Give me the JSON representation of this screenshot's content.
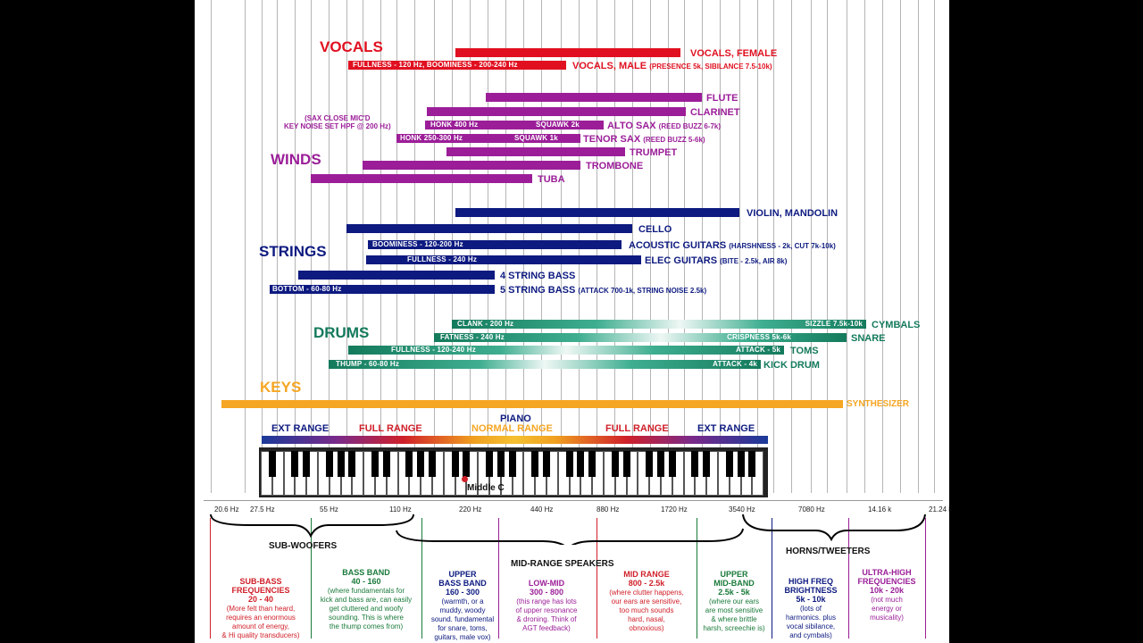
{
  "sections": {
    "vocals": "VOCALS",
    "winds": "WINDS",
    "strings": "STRINGS",
    "drums": "DRUMS",
    "keys": "KEYS"
  },
  "colors": {
    "vocals": "#e01020",
    "winds": "#9b1e98",
    "strings": "#0d1a80",
    "drums": "#147a5c",
    "keys": "#f5a623"
  },
  "vocals": {
    "female_label": "VOCALS, FEMALE",
    "male_label": "VOCALS, MALE",
    "male_note": "(PRESENCE 5k, SIBILANCE 7.5-10k)",
    "male_bar_text": "FULLNESS - 120 Hz, BOOMINESS - 200-240 Hz"
  },
  "winds": {
    "flute": "FLUTE",
    "clarinet": "CLARINET",
    "alto_sax": "ALTO SAX",
    "alto_note": "(REED BUZZ 6-7k)",
    "alto_honk": "HONK 400 Hz",
    "alto_squawk": "SQUAWK 2k",
    "tenor_sax": "TENOR SAX",
    "tenor_note": "(REED BUZZ 5-6k)",
    "tenor_honk": "HONK 250-300 Hz",
    "tenor_squawk": "SQUAWK 1k",
    "trumpet": "TRUMPET",
    "trombone": "TROMBONE",
    "tuba": "TUBA",
    "sax_note_1": "(SAX CLOSE MIC'D",
    "sax_note_2": "KEY NOISE SET HPF @ 200 Hz)"
  },
  "strings": {
    "violin": "VIOLIN, MANDOLIN",
    "cello": "CELLO",
    "acoustic": "ACOUSTIC GUITARS",
    "acoustic_note": "(HARSHNESS - 2k, CUT 7k-10k)",
    "acoustic_bar": "BOOMINESS - 120-200 Hz",
    "elec": "ELEC GUITARS",
    "elec_note": "(BITE - 2.5k, AIR 8k)",
    "elec_bar": "FULLNESS - 240 Hz",
    "bass4": "4 STRING BASS",
    "bass5": "5 STRING BASS",
    "bass5_note": "(ATTACK 700-1k, STRING NOISE 2.5k)",
    "bass5_bar": "BOTTOM - 60-80 Hz"
  },
  "drums": {
    "cymbals": "CYMBALS",
    "cymbals_bar_left": "CLANK - 200 Hz",
    "cymbals_bar_right": "SIZZLE 7.5k-10k",
    "snare": "SNARE",
    "snare_bar_left": "FATNESS - 240 Hz",
    "snare_bar_right": "CRISPNESS 5k-6k",
    "toms": "TOMS",
    "toms_bar_left": "FULLNESS - 120-240 Hz",
    "toms_bar_right": "ATTACK - 5k",
    "kick": "KICK DRUM",
    "kick_bar_left": "THUMP - 60-80 Hz",
    "kick_bar_right": "ATTACK - 4k"
  },
  "keys": {
    "synth": "SYNTHESIZER",
    "piano": "PIANO",
    "ext_left": "EXT RANGE",
    "full_left": "FULL RANGE",
    "normal": "NORMAL RANGE",
    "full_right": "FULL RANGE",
    "ext_right": "EXT RANGE",
    "middle_c": "Middle C"
  },
  "freq_labels": [
    "20.6 Hz",
    "27.5 Hz",
    "55 Hz",
    "110 Hz",
    "220 Hz",
    "440 Hz",
    "880 Hz",
    "1720 Hz",
    "3540 Hz",
    "7080 Hz",
    "14.16 k",
    "21.24 k"
  ],
  "speakers": {
    "subwoofers": "SUB-WOOFERS",
    "midrange": "MID-RANGE SPEAKERS",
    "horns": "HORNS/TWEETERS"
  },
  "bands": [
    {
      "title": "SUB-BASS\nFREQUENCIES\n20 - 40",
      "desc": "(More felt than heard,\nrequires an enormous\namount of energy,\n& Hi quality transducers)",
      "color": "#d0202a"
    },
    {
      "title": "BASS BAND\n40 - 160",
      "desc": "(where fundamentals for\nkick and bass are, can easily\nget cluttered and woofy\nsounding. This is where\nthe thump comes from)",
      "color": "#1a7a3a"
    },
    {
      "title": "UPPER\nBASS BAND\n160 - 300",
      "desc": "(warmth, or a\nmuddy, woody\nsound. fundamental\nfor snare, toms,\nguitars, male vox)",
      "color": "#0d1a80"
    },
    {
      "title": "LOW-MID\n300 - 800",
      "desc": "(this range has lots\nof upper resonance\n& droning. Think of\nAGT feedback)",
      "color": "#9b1e98"
    },
    {
      "title": "MID RANGE\n800 - 2.5k",
      "desc": "(where clutter happens,\nour ears are sensitive,\ntoo much sounds\nhard, nasal,\nobnoxious)",
      "color": "#d0202a"
    },
    {
      "title": "UPPER\nMID-BAND\n2.5k - 5k",
      "desc": "(where our ears\nare most sensitive\n& where brittle\nharsh, screechie is)",
      "color": "#1a7a3a"
    },
    {
      "title": "HIGH FREQ\nBRIGHTNESS\n5k - 10k",
      "desc": "(lots of\nharmonics. plus\nvocal sibilance,\nand cymbals)",
      "color": "#0d1a80"
    },
    {
      "title": "ULTRA-HIGH\nFREQUENCIES\n10k - 20k",
      "desc": "(not much\nenergy or\nmusicality)",
      "color": "#9b1e98"
    }
  ]
}
